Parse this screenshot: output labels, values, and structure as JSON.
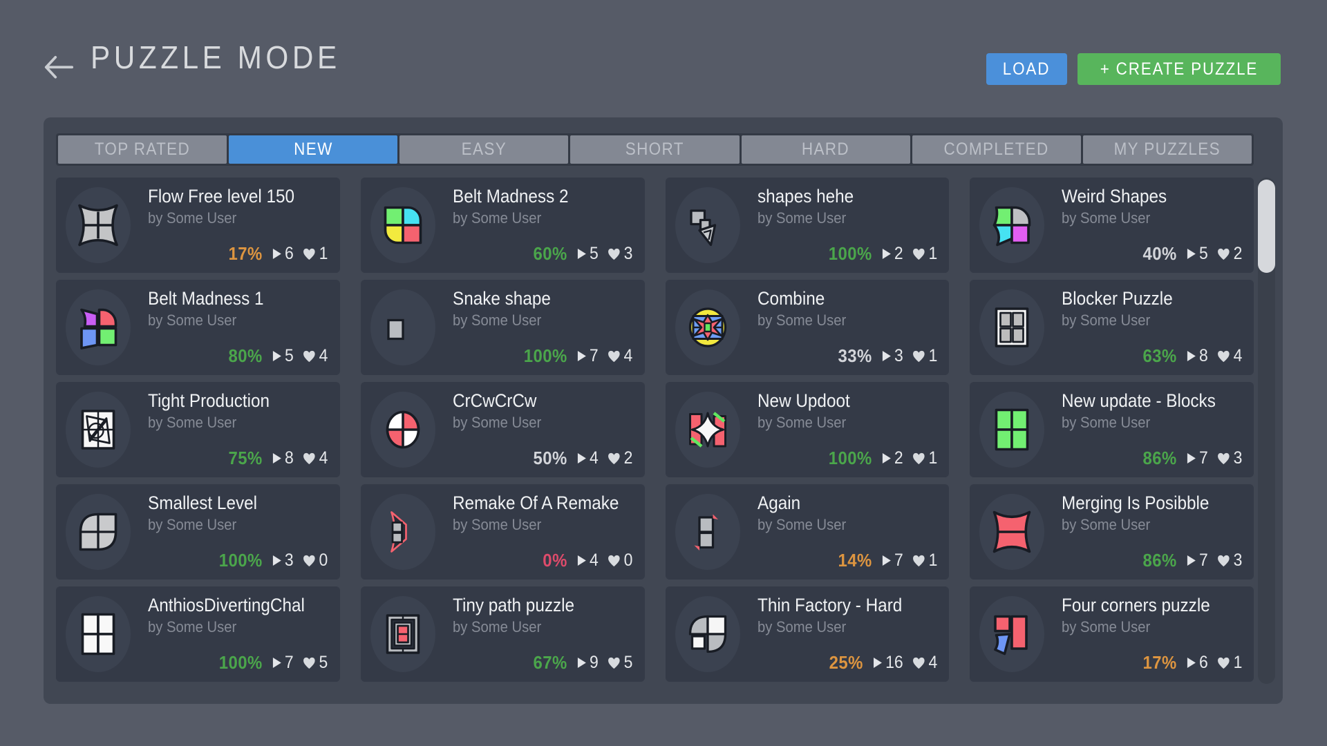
{
  "header": {
    "title": "PUZZLE MODE",
    "back_icon": "arrow-left",
    "load_label": "LOAD",
    "create_label": "+ CREATE PUZZLE"
  },
  "tabs": [
    {
      "label": "TOP RATED",
      "active": false
    },
    {
      "label": "NEW",
      "active": true
    },
    {
      "label": "EASY",
      "active": false
    },
    {
      "label": "SHORT",
      "active": false
    },
    {
      "label": "HARD",
      "active": false
    },
    {
      "label": "COMPLETED",
      "active": false
    },
    {
      "label": "MY PUZZLES",
      "active": false
    }
  ],
  "percent_colors": {
    "green": "#4ba64b",
    "orange": "#dd9540",
    "red": "#de4b6b",
    "plain": "#d3d5da"
  },
  "accent_colors": {
    "load_button": "#4b90da",
    "create_button": "#58b55c",
    "active_tab": "#4a90d8"
  },
  "puzzles": [
    {
      "title": "Flow Free level 150",
      "author": "by Some User",
      "percent": "17%",
      "percent_color": "orange",
      "plays": "6",
      "likes": "1",
      "icon": "star4-gray"
    },
    {
      "title": "Belt Madness 2",
      "author": "by Some User",
      "percent": "60%",
      "percent_color": "green",
      "plays": "5",
      "likes": "3",
      "icon": "quad-belt2"
    },
    {
      "title": "shapes hehe",
      "author": "by Some User",
      "percent": "100%",
      "percent_color": "green",
      "plays": "2",
      "likes": "1",
      "icon": "shapes-hehe"
    },
    {
      "title": "Weird Shapes",
      "author": "by Some User",
      "percent": "40%",
      "percent_color": "plain",
      "plays": "5",
      "likes": "2",
      "icon": "weird-shapes"
    },
    {
      "title": "Belt Madness 1",
      "author": "by Some User",
      "percent": "80%",
      "percent_color": "green",
      "plays": "5",
      "likes": "4",
      "icon": "quad-belt1"
    },
    {
      "title": "Snake shape",
      "author": "by Some User",
      "percent": "100%",
      "percent_color": "green",
      "plays": "7",
      "likes": "4",
      "icon": "snake-square"
    },
    {
      "title": "Combine",
      "author": "by Some User",
      "percent": "33%",
      "percent_color": "plain",
      "plays": "3",
      "likes": "1",
      "icon": "combine-star"
    },
    {
      "title": "Blocker Puzzle",
      "author": "by Some User",
      "percent": "63%",
      "percent_color": "green",
      "plays": "8",
      "likes": "4",
      "icon": "blocker-grid"
    },
    {
      "title": "Tight Production",
      "author": "by Some User",
      "percent": "75%",
      "percent_color": "green",
      "plays": "8",
      "likes": "4",
      "icon": "tight-production"
    },
    {
      "title": "CrCwCrCw",
      "author": "by Some User",
      "percent": "50%",
      "percent_color": "plain",
      "plays": "4",
      "likes": "2",
      "icon": "quarter-circle"
    },
    {
      "title": "New Updoot",
      "author": "by Some User",
      "percent": "100%",
      "percent_color": "green",
      "plays": "2",
      "likes": "1",
      "icon": "updoot-star"
    },
    {
      "title": "New update - Blocks",
      "author": "by Some User",
      "percent": "86%",
      "percent_color": "green",
      "plays": "7",
      "likes": "3",
      "icon": "green-blocks"
    },
    {
      "title": "Smallest Level",
      "author": "by Some User",
      "percent": "100%",
      "percent_color": "green",
      "plays": "3",
      "likes": "0",
      "icon": "leaf-grid-gray"
    },
    {
      "title": "Remake Of A Remake",
      "author": "by Some User",
      "percent": "0%",
      "percent_color": "red",
      "plays": "4",
      "likes": "0",
      "icon": "remake-wedge"
    },
    {
      "title": "Again",
      "author": "by Some User",
      "percent": "14%",
      "percent_color": "orange",
      "plays": "7",
      "likes": "1",
      "icon": "again-squares"
    },
    {
      "title": "Merging Is Posibble",
      "author": "by Some User",
      "percent": "86%",
      "percent_color": "green",
      "plays": "7",
      "likes": "3",
      "icon": "star4-red"
    },
    {
      "title": "AnthiosDivertingChal",
      "author": "by Some User",
      "percent": "100%",
      "percent_color": "green",
      "plays": "7",
      "likes": "5",
      "icon": "white-blocks"
    },
    {
      "title": "Tiny path puzzle",
      "author": "by Some User",
      "percent": "67%",
      "percent_color": "green",
      "plays": "9",
      "likes": "5",
      "icon": "tiny-path"
    },
    {
      "title": "Thin Factory - Hard",
      "author": "by Some User",
      "percent": "25%",
      "percent_color": "orange",
      "plays": "16",
      "likes": "4",
      "icon": "thin-factory"
    },
    {
      "title": "Four corners puzzle",
      "author": "by Some User",
      "percent": "17%",
      "percent_color": "orange",
      "plays": "6",
      "likes": "1",
      "icon": "four-corners"
    }
  ]
}
